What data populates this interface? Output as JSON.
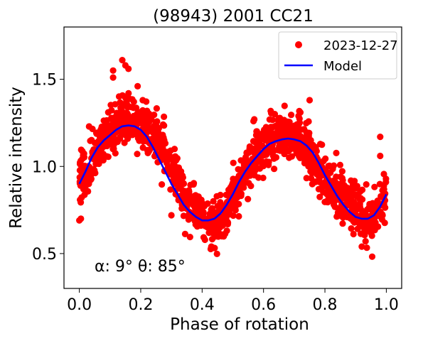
{
  "chart_data": {
    "type": "scatter",
    "title": "(98943) 2001 CC21",
    "xlabel": "Phase of rotation",
    "ylabel": "Relative intensity",
    "xlim": [
      -0.05,
      1.05
    ],
    "ylim": [
      0.3,
      1.8
    ],
    "xticks": [
      0.0,
      0.2,
      0.4,
      0.6,
      0.8,
      1.0
    ],
    "xtick_labels": [
      "0.0",
      "0.2",
      "0.4",
      "0.6",
      "0.8",
      "1.0"
    ],
    "yticks": [
      0.5,
      1.0,
      1.5
    ],
    "ytick_labels": [
      "0.5",
      "1.0",
      "1.5"
    ],
    "grid": false,
    "legend_position": "upper right",
    "annotation": "α: 9° θ: 85°",
    "series": [
      {
        "name": "2023-12-27",
        "kind": "scatter",
        "color": "#ff0000",
        "approx_count": 1400,
        "profile_x": [
          0.0,
          0.02,
          0.04,
          0.06,
          0.08,
          0.1,
          0.12,
          0.14,
          0.16,
          0.18,
          0.2,
          0.22,
          0.24,
          0.26,
          0.28,
          0.3,
          0.32,
          0.34,
          0.36,
          0.38,
          0.4,
          0.42,
          0.44,
          0.46,
          0.48,
          0.5,
          0.52,
          0.54,
          0.56,
          0.58,
          0.6,
          0.62,
          0.64,
          0.66,
          0.68,
          0.7,
          0.72,
          0.74,
          0.76,
          0.78,
          0.8,
          0.82,
          0.84,
          0.86,
          0.88,
          0.9,
          0.92,
          0.94,
          0.96,
          0.98,
          1.0
        ],
        "profile_y": [
          0.97,
          0.95,
          1.02,
          1.1,
          1.16,
          1.2,
          1.24,
          1.27,
          1.28,
          1.27,
          1.25,
          1.22,
          1.18,
          1.13,
          1.07,
          1.0,
          0.92,
          0.85,
          0.79,
          0.74,
          0.7,
          0.67,
          0.66,
          0.69,
          0.75,
          0.83,
          0.9,
          0.97,
          1.03,
          1.08,
          1.12,
          1.15,
          1.17,
          1.18,
          1.18,
          1.17,
          1.16,
          1.12,
          1.05,
          0.98,
          0.92,
          0.88,
          0.85,
          0.82,
          0.8,
          0.76,
          0.71,
          0.69,
          0.71,
          0.76,
          0.82
        ],
        "spread": 0.07,
        "outliers": [
          {
            "x": 0.0,
            "y": 0.69
          },
          {
            "x": 0.005,
            "y": 0.7
          },
          {
            "x": 0.14,
            "y": 1.61
          },
          {
            "x": 0.15,
            "y": 1.58
          },
          {
            "x": 0.11,
            "y": 1.55
          },
          {
            "x": 0.11,
            "y": 1.51
          },
          {
            "x": 0.16,
            "y": 1.56
          },
          {
            "x": 0.75,
            "y": 1.38
          },
          {
            "x": 0.72,
            "y": 1.31
          },
          {
            "x": 0.57,
            "y": 1.27
          },
          {
            "x": 0.43,
            "y": 0.54
          },
          {
            "x": 0.92,
            "y": 0.54
          },
          {
            "x": 0.98,
            "y": 1.17
          },
          {
            "x": 0.98,
            "y": 1.06
          },
          {
            "x": 0.19,
            "y": 1.46
          },
          {
            "x": 0.3,
            "y": 0.72
          },
          {
            "x": 0.78,
            "y": 0.87
          }
        ]
      },
      {
        "name": "Model",
        "kind": "line",
        "color": "#0000ff",
        "x": [
          0.0,
          0.02,
          0.04,
          0.06,
          0.08,
          0.1,
          0.12,
          0.14,
          0.16,
          0.18,
          0.2,
          0.22,
          0.24,
          0.26,
          0.28,
          0.3,
          0.32,
          0.34,
          0.36,
          0.38,
          0.4,
          0.42,
          0.44,
          0.46,
          0.48,
          0.5,
          0.52,
          0.54,
          0.56,
          0.58,
          0.6,
          0.62,
          0.64,
          0.66,
          0.68,
          0.7,
          0.72,
          0.74,
          0.76,
          0.78,
          0.8,
          0.82,
          0.84,
          0.86,
          0.88,
          0.9,
          0.92,
          0.94,
          0.96,
          0.98,
          1.0
        ],
        "y": [
          0.9,
          0.97,
          1.05,
          1.11,
          1.15,
          1.18,
          1.21,
          1.23,
          1.235,
          1.23,
          1.21,
          1.17,
          1.11,
          1.04,
          0.97,
          0.9,
          0.84,
          0.78,
          0.74,
          0.71,
          0.69,
          0.69,
          0.7,
          0.73,
          0.78,
          0.84,
          0.91,
          0.97,
          1.02,
          1.06,
          1.1,
          1.13,
          1.145,
          1.155,
          1.16,
          1.155,
          1.145,
          1.12,
          1.08,
          1.02,
          0.95,
          0.89,
          0.83,
          0.78,
          0.74,
          0.71,
          0.7,
          0.7,
          0.72,
          0.77,
          0.84
        ]
      }
    ]
  }
}
